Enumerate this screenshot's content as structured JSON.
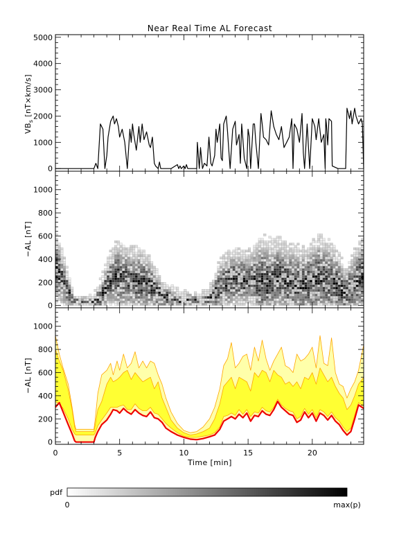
{
  "figure_title": "Near Real Time AL Forecast",
  "colors": {
    "line": "#000000",
    "pdf_cell": "#000000",
    "forecast_fill": "#ffff33",
    "forecast_envelope": "#ffa500",
    "forecast_pale": "#ffffaa",
    "forecast_median": "#ee0000"
  },
  "chart_data": [
    {
      "id": "vbs",
      "type": "line",
      "title": "Near Real Time AL Forecast",
      "ylabel_main": "VB",
      "ylabel_sub": "s",
      "ylabel_rest": " [nT×km/s]",
      "xlim": [
        0,
        24
      ],
      "ylim": [
        -100,
        5100
      ],
      "yticks": [
        0,
        1000,
        2000,
        3000,
        4000,
        5000
      ],
      "series": [
        {
          "x": [
            0,
            3.0,
            3.15,
            3.3,
            3.5,
            3.7,
            3.85,
            4.0,
            4.1,
            4.3,
            4.5,
            4.6,
            4.75,
            4.9,
            5.0,
            5.2,
            5.4,
            5.6,
            5.8,
            5.9,
            6.0,
            6.1,
            6.3,
            6.5,
            6.6,
            6.75,
            6.9,
            7.1,
            7.3,
            7.4,
            7.55,
            7.7,
            7.8,
            8.0,
            8.1,
            8.2,
            8.3,
            8.4,
            8.6,
            9.0,
            9.5,
            9.6,
            9.7,
            9.8,
            10.0,
            10.1,
            10.2,
            10.3,
            10.6,
            11.0,
            11.05,
            11.2,
            11.3,
            11.45,
            11.6,
            11.8,
            11.95,
            12.1,
            12.2,
            12.4,
            12.5,
            12.6,
            12.8,
            12.9,
            13.0,
            13.1,
            13.3,
            13.4,
            13.5,
            13.6,
            13.8,
            14.0,
            14.1,
            14.3,
            14.4,
            14.5,
            14.6,
            14.7,
            14.9,
            15.0,
            15.1,
            15.2,
            15.4,
            15.5,
            15.6,
            15.8,
            16.0,
            16.1,
            16.2,
            16.4,
            16.6,
            16.8,
            17.0,
            17.2,
            17.4,
            17.6,
            17.8,
            18.0,
            18.2,
            18.4,
            18.5,
            18.6,
            18.8,
            19.0,
            19.2,
            19.3,
            19.4,
            19.6,
            19.8,
            20.0,
            20.2,
            20.3,
            20.5,
            20.7,
            20.9,
            21.0,
            21.05,
            21.1,
            21.2,
            21.3,
            21.5,
            21.55,
            22.0,
            22.6,
            22.7,
            22.9,
            23.0,
            23.1,
            23.3,
            23.4,
            23.6,
            23.8,
            23.9,
            24.0
          ],
          "y": [
            0,
            0,
            200,
            0,
            1700,
            1500,
            0,
            500,
            1200,
            1800,
            2000,
            1700,
            1900,
            1600,
            1200,
            1500,
            1000,
            0,
            1500,
            1000,
            1700,
            1300,
            700,
            1600,
            1000,
            1700,
            1100,
            1400,
            900,
            800,
            1200,
            200,
            100,
            0,
            250,
            0,
            0,
            0,
            0,
            0,
            150,
            0,
            100,
            0,
            100,
            0,
            150,
            0,
            0,
            0,
            1000,
            0,
            800,
            0,
            200,
            100,
            1200,
            200,
            100,
            500,
            1500,
            1000,
            1700,
            400,
            300,
            1700,
            2000,
            1400,
            700,
            0,
            1500,
            1800,
            900,
            1300,
            200,
            1700,
            1100,
            400,
            0,
            1500,
            1200,
            0,
            1700,
            1700,
            1000,
            0,
            2100,
            1700,
            1200,
            1100,
            900,
            2200,
            1600,
            1300,
            1100,
            1600,
            800,
            1000,
            1200,
            1900,
            0,
            1700,
            1500,
            1000,
            2100,
            600,
            0,
            1700,
            0,
            1900,
            1600,
            1100,
            1900,
            1000,
            1300,
            0,
            1900,
            1700,
            900,
            1900,
            1800,
            100,
            0,
            0,
            2300,
            1900,
            2200,
            1700,
            2300,
            2000,
            1700,
            1900,
            1700,
            0
          ]
        }
      ]
    },
    {
      "id": "al-pdf",
      "type": "heatmap",
      "ylabel": "−AL [nT]",
      "xlim": [
        0,
        24
      ],
      "ylim": [
        -20,
        1160
      ],
      "yticks": [
        0,
        200,
        400,
        600,
        800,
        1000
      ],
      "colorbar": {
        "label": "pdf",
        "min_label": "0",
        "max_label": "max(p)"
      },
      "bins": {
        "x_step": 0.2,
        "y_step": 20
      },
      "profile": {
        "x": [
          0,
          0.3,
          0.8,
          1.3,
          1.5,
          3.0,
          3.5,
          4.2,
          4.8,
          5.3,
          6.0,
          6.6,
          7.2,
          7.6,
          8.3,
          9.0,
          10.0,
          11.0,
          11.8,
          12.3,
          12.8,
          13.5,
          14.2,
          15.0,
          15.5,
          16.0,
          16.6,
          17.3,
          18.0,
          18.6,
          19.2,
          19.8,
          20.5,
          21.0,
          21.5,
          22.0,
          22.6,
          23.0,
          23.5,
          24.0
        ],
        "center": [
          320,
          270,
          150,
          60,
          20,
          20,
          60,
          200,
          240,
          220,
          200,
          190,
          180,
          140,
          80,
          50,
          30,
          30,
          40,
          80,
          140,
          200,
          220,
          200,
          230,
          200,
          180,
          240,
          200,
          180,
          160,
          190,
          230,
          220,
          200,
          150,
          90,
          140,
          200,
          250
        ],
        "upper": [
          650,
          560,
          350,
          150,
          80,
          80,
          200,
          420,
          560,
          520,
          480,
          500,
          440,
          360,
          220,
          150,
          110,
          90,
          110,
          220,
          380,
          460,
          480,
          450,
          520,
          600,
          560,
          580,
          520,
          520,
          480,
          520,
          600,
          560,
          560,
          460,
          300,
          420,
          500,
          560
        ]
      }
    },
    {
      "id": "al-forecast",
      "type": "area",
      "ylabel": "−AL [nT]",
      "xlabel": "Time [min]",
      "xlim": [
        0,
        24
      ],
      "ylim": [
        -20,
        1160
      ],
      "xticks": [
        0,
        5,
        10,
        15,
        20
      ],
      "yticks": [
        0,
        200,
        400,
        600,
        800,
        1000
      ],
      "x": [
        0,
        0.3,
        0.6,
        1.0,
        1.3,
        1.5,
        1.6,
        2.0,
        2.5,
        3.0,
        3.1,
        3.3,
        3.6,
        4.0,
        4.3,
        4.5,
        4.8,
        5.0,
        5.3,
        5.6,
        5.9,
        6.2,
        6.5,
        6.8,
        7.1,
        7.4,
        7.7,
        8.0,
        8.3,
        8.6,
        9.0,
        9.5,
        10.0,
        10.5,
        11.0,
        11.5,
        12.0,
        12.4,
        12.8,
        13.1,
        13.4,
        13.7,
        14.0,
        14.3,
        14.6,
        14.9,
        15.2,
        15.5,
        15.8,
        16.1,
        16.4,
        16.7,
        17.0,
        17.3,
        17.6,
        17.9,
        18.2,
        18.5,
        18.8,
        19.1,
        19.4,
        19.7,
        20.0,
        20.3,
        20.6,
        20.9,
        21.2,
        21.5,
        21.8,
        22.1,
        22.4,
        22.7,
        23.0,
        23.3,
        23.6,
        24.0
      ],
      "median": [
        300,
        340,
        260,
        150,
        70,
        10,
        0,
        0,
        0,
        0,
        40,
        90,
        150,
        190,
        240,
        280,
        270,
        250,
        290,
        260,
        240,
        280,
        250,
        230,
        220,
        260,
        210,
        200,
        170,
        120,
        90,
        60,
        40,
        25,
        20,
        30,
        45,
        60,
        110,
        180,
        200,
        220,
        200,
        240,
        210,
        250,
        180,
        230,
        220,
        270,
        240,
        230,
        280,
        350,
        300,
        270,
        240,
        230,
        170,
        190,
        260,
        210,
        250,
        180,
        250,
        230,
        190,
        230,
        180,
        150,
        100,
        60,
        90,
        200,
        320,
        290
      ],
      "band_low": [
        350,
        330,
        290,
        200,
        110,
        70,
        60,
        60,
        60,
        60,
        80,
        140,
        190,
        250,
        300,
        300,
        300,
        310,
        320,
        280,
        280,
        330,
        290,
        270,
        270,
        300,
        250,
        240,
        200,
        160,
        120,
        80,
        50,
        40,
        40,
        50,
        60,
        80,
        130,
        220,
        230,
        250,
        230,
        280,
        240,
        280,
        220,
        260,
        250,
        300,
        270,
        260,
        300,
        370,
        320,
        290,
        270,
        260,
        200,
        220,
        290,
        240,
        280,
        210,
        280,
        260,
        220,
        260,
        210,
        180,
        130,
        90,
        120,
        230,
        340,
        310
      ],
      "band_high": [
        800,
        700,
        620,
        450,
        280,
        130,
        90,
        90,
        90,
        90,
        150,
        280,
        350,
        500,
        560,
        520,
        540,
        560,
        600,
        620,
        540,
        600,
        560,
        520,
        540,
        560,
        460,
        520,
        380,
        300,
        190,
        120,
        80,
        60,
        70,
        90,
        120,
        200,
        330,
        480,
        520,
        560,
        460,
        560,
        540,
        520,
        440,
        600,
        560,
        620,
        600,
        520,
        620,
        580,
        560,
        500,
        520,
        480,
        520,
        460,
        560,
        540,
        600,
        500,
        640,
        580,
        520,
        560,
        480,
        420,
        380,
        280,
        320,
        400,
        500,
        560
      ],
      "envelope": [
        920,
        760,
        640,
        500,
        300,
        150,
        110,
        110,
        110,
        110,
        200,
        420,
        580,
        620,
        680,
        580,
        700,
        620,
        760,
        640,
        680,
        780,
        640,
        700,
        640,
        700,
        680,
        580,
        500,
        380,
        260,
        160,
        100,
        80,
        90,
        130,
        200,
        300,
        460,
        660,
        720,
        860,
        640,
        680,
        740,
        760,
        620,
        820,
        700,
        880,
        720,
        620,
        700,
        760,
        820,
        660,
        640,
        600,
        760,
        700,
        720,
        760,
        820,
        640,
        920,
        680,
        660,
        900,
        600,
        500,
        480,
        380,
        460,
        520,
        620,
        840
      ]
    }
  ]
}
